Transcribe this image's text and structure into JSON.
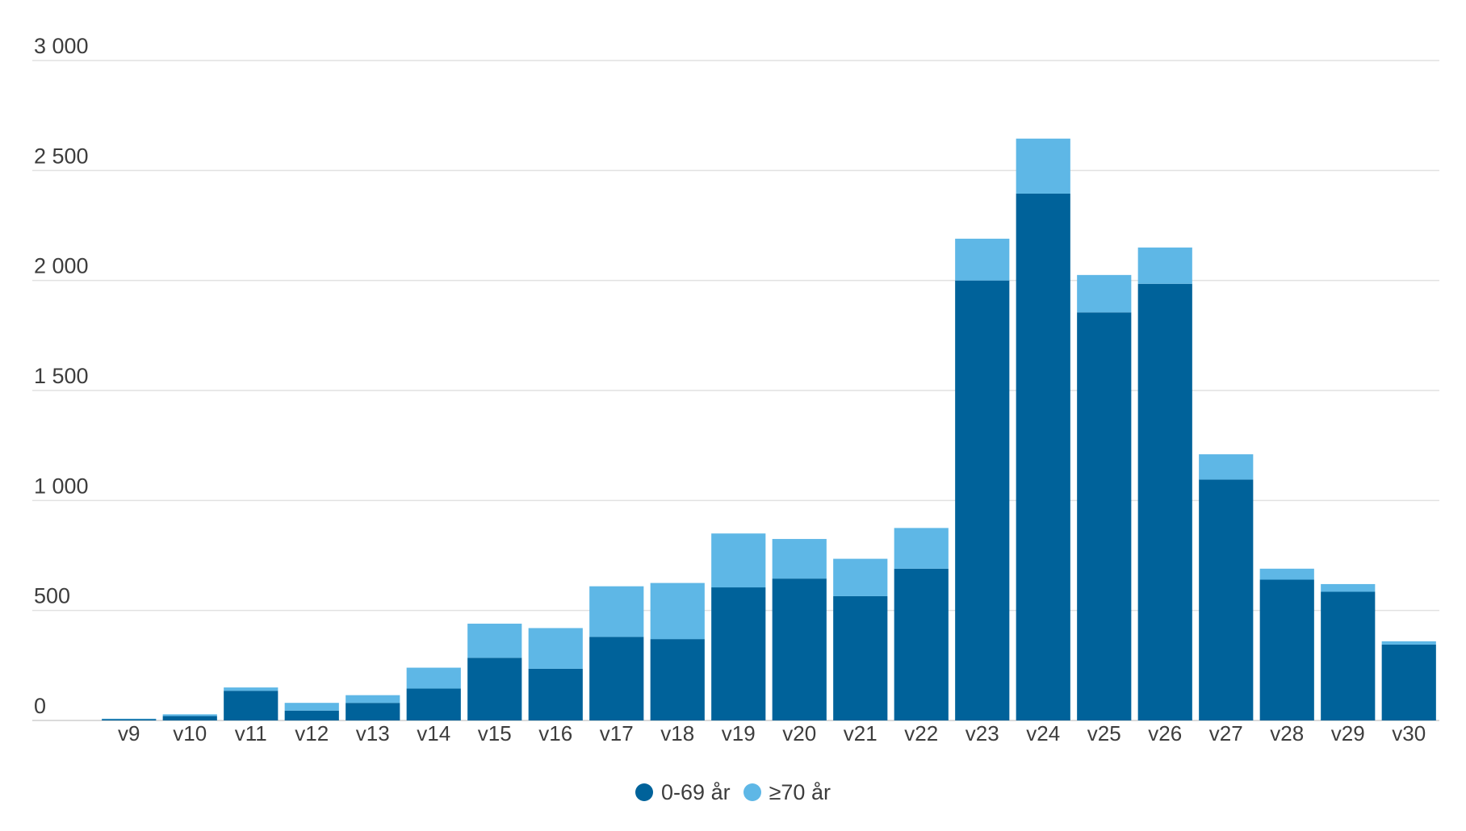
{
  "chart_data": {
    "type": "bar",
    "stacked": true,
    "categories": [
      "v9",
      "v10",
      "v11",
      "v12",
      "v13",
      "v14",
      "v15",
      "v16",
      "v17",
      "v18",
      "v19",
      "v20",
      "v21",
      "v22",
      "v23",
      "v24",
      "v25",
      "v26",
      "v27",
      "v28",
      "v29",
      "v30"
    ],
    "series": [
      {
        "name": "0-69 år",
        "color": "#00629a",
        "values": [
          6,
          20,
          135,
          45,
          80,
          145,
          285,
          235,
          380,
          370,
          605,
          645,
          565,
          690,
          2000,
          2395,
          1855,
          1985,
          1095,
          640,
          585,
          345
        ]
      },
      {
        "name": "≥70 år",
        "color": "#5eb7e6",
        "values": [
          2,
          8,
          15,
          35,
          35,
          95,
          155,
          185,
          230,
          255,
          245,
          180,
          170,
          185,
          190,
          250,
          170,
          165,
          115,
          50,
          35,
          15
        ]
      }
    ],
    "yticks": [
      "0",
      "500",
      "1 000",
      "1 500",
      "2 000",
      "2 500",
      "3 000"
    ],
    "ylim": [
      0,
      3000
    ],
    "grid": true,
    "legend_position": "bottom-center"
  }
}
